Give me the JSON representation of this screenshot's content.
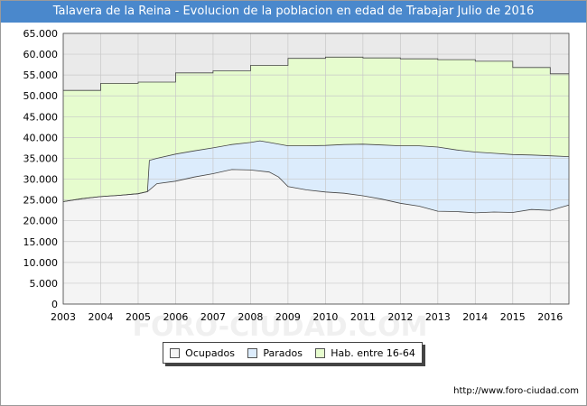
{
  "header": {
    "title": "Talavera de la Reina - Evolucion de la poblacion en edad de Trabajar Julio de 2016"
  },
  "footer": {
    "url": "http://www.foro-ciudad.com"
  },
  "watermark": "FORO-CIUDAD.COM",
  "colors": {
    "title_bg": "#4a88cc",
    "ocupados_fill": "#f4f4f4",
    "parados_fill": "#dcecfc",
    "hab_fill": "#e6fcce",
    "plot_bg": "#eaeaea",
    "grid": "#c8c8c8",
    "line": "#444444"
  },
  "chart_data": {
    "type": "area",
    "title": "Talavera de la Reina - Evolucion de la poblacion en edad de Trabajar Julio de 2016",
    "xlabel": "",
    "ylabel": "",
    "xlim": [
      2003,
      2016.5
    ],
    "ylim": [
      0,
      65000
    ],
    "grid": true,
    "legend_position": "bottom",
    "x_ticks": [
      "2003",
      "2004",
      "2005",
      "2006",
      "2007",
      "2008",
      "2009",
      "2010",
      "2011",
      "2012",
      "2013",
      "2014",
      "2015",
      "2016"
    ],
    "y_ticks": [
      "0",
      "5.000",
      "10.000",
      "15.000",
      "20.000",
      "25.000",
      "30.000",
      "35.000",
      "40.000",
      "45.000",
      "50.000",
      "55.000",
      "60.000",
      "65.000"
    ],
    "series": [
      {
        "name": "Hab. entre 16-64",
        "color": "#e6fcce",
        "x": [
          2003.0,
          2004.0,
          2004.0,
          2005.0,
          2005.0,
          2006.0,
          2006.0,
          2007.0,
          2007.0,
          2008.0,
          2008.0,
          2009.0,
          2009.0,
          2010.0,
          2010.0,
          2011.0,
          2011.0,
          2012.0,
          2012.0,
          2013.0,
          2013.0,
          2014.0,
          2014.0,
          2015.0,
          2015.0,
          2016.0,
          2016.0,
          2016.5
        ],
        "values": [
          51300,
          51300,
          53000,
          53000,
          53300,
          53300,
          55500,
          55500,
          56000,
          56000,
          57300,
          57300,
          59000,
          59000,
          59300,
          59300,
          59100,
          59100,
          58900,
          58900,
          58700,
          58700,
          58300,
          58300,
          56800,
          56800,
          55300,
          55300
        ]
      },
      {
        "name": "Parados",
        "color": "#dcecfc",
        "x": [
          2003.0,
          2003.5,
          2004.0,
          2004.5,
          2005.0,
          2005.25,
          2005.3,
          2005.5,
          2006.0,
          2006.5,
          2007.0,
          2007.5,
          2008.0,
          2008.25,
          2008.5,
          2009.0,
          2009.5,
          2010.0,
          2010.5,
          2011.0,
          2011.5,
          2012.0,
          2012.5,
          2013.0,
          2013.5,
          2014.0,
          2014.5,
          2015.0,
          2015.5,
          2016.0,
          2016.5
        ],
        "values": [
          24600,
          25300,
          25800,
          26100,
          26500,
          27000,
          34500,
          35000,
          36000,
          36800,
          37500,
          38300,
          38800,
          39200,
          38800,
          38000,
          38000,
          38100,
          38300,
          38400,
          38200,
          38000,
          38000,
          37700,
          37000,
          36500,
          36200,
          35900,
          35800,
          35600,
          35400
        ]
      },
      {
        "name": "Ocupados",
        "color": "#f4f4f4",
        "x": [
          2003.0,
          2003.5,
          2004.0,
          2004.5,
          2005.0,
          2005.25,
          2005.5,
          2006.0,
          2006.5,
          2007.0,
          2007.5,
          2008.0,
          2008.5,
          2008.75,
          2009.0,
          2009.5,
          2010.0,
          2010.5,
          2011.0,
          2011.5,
          2012.0,
          2012.5,
          2013.0,
          2013.5,
          2014.0,
          2014.5,
          2015.0,
          2015.5,
          2016.0,
          2016.5
        ],
        "values": [
          24600,
          25300,
          25800,
          26100,
          26500,
          27000,
          28900,
          29500,
          30500,
          31300,
          32300,
          32200,
          31700,
          30500,
          28200,
          27400,
          26900,
          26600,
          26000,
          25200,
          24200,
          23500,
          22300,
          22200,
          21900,
          22100,
          22000,
          22700,
          22500,
          23800
        ]
      }
    ]
  }
}
